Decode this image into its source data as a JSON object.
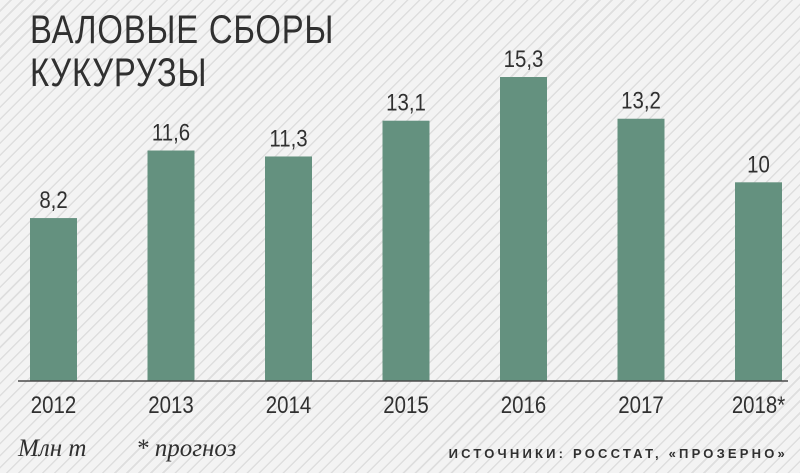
{
  "chart_data": {
    "type": "bar",
    "title": "ВАЛОВЫЕ СБОРЫ КУКУРУЗЫ",
    "title_lines": [
      "ВАЛОВЫЕ СБОРЫ",
      "КУКУРУЗЫ"
    ],
    "categories": [
      "2012",
      "2013",
      "2014",
      "2015",
      "2016",
      "2017",
      "2018*"
    ],
    "values": [
      8.2,
      11.6,
      11.3,
      13.1,
      15.3,
      13.2,
      10
    ],
    "value_labels": [
      "8,2",
      "11,6",
      "11,3",
      "13,1",
      "15,3",
      "13,2",
      "10"
    ],
    "unit": "Млн т",
    "note": "* прогноз",
    "source": "ИСТОЧНИКИ: РОССТАТ, «ПРОЗЕРНО»",
    "ylim": [
      0,
      15.3
    ],
    "grid": false,
    "legend": "none",
    "colors": {
      "bar": "#64917f",
      "axis": "#4a4a4a",
      "text": "#303030"
    }
  }
}
